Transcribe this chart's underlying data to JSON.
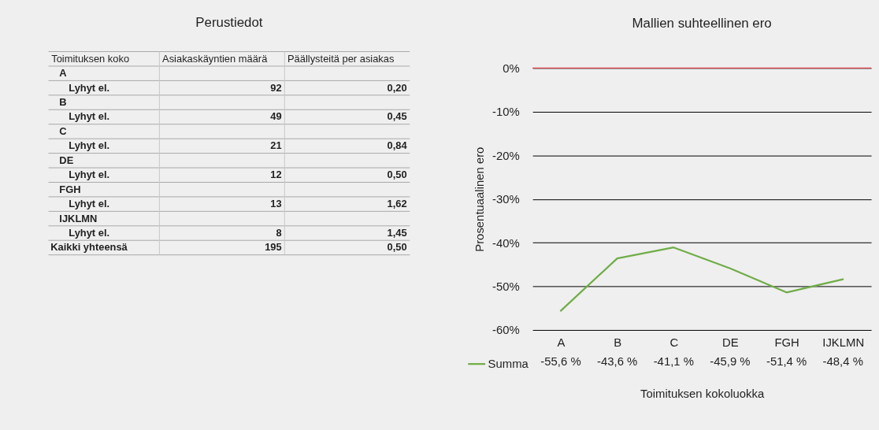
{
  "chart_data": [
    {
      "type": "other",
      "title": "Perustiedot",
      "ylabel": "Toimituksen koko",
      "categories": [
        "A",
        "Lyhyt el.",
        "B",
        "Lyhyt el.",
        "C",
        "Lyhyt el.",
        "DE",
        "Lyhyt el.",
        "FGH",
        "Lyhyt el.",
        "IJKLMN",
        "Lyhyt el.",
        "Kaikki yhteensä"
      ],
      "series": [
        {
          "name": "Asiakaskäyntien määrä",
          "values": [
            null,
            92,
            null,
            49,
            null,
            21,
            null,
            12,
            null,
            13,
            null,
            8,
            195
          ],
          "value_labels": [
            null,
            "92",
            null,
            "49",
            null,
            "21",
            null,
            "12",
            null,
            "13",
            null,
            "8",
            "195"
          ]
        },
        {
          "name": "Päällysteitä per asiakas",
          "values": [
            null,
            0.2,
            null,
            0.45,
            null,
            0.84,
            null,
            0.5,
            null,
            1.62,
            null,
            1.45,
            0.5
          ],
          "value_labels": [
            null,
            "0,20",
            null,
            "0,45",
            null,
            "0,84",
            null,
            "0,50",
            null,
            "1,62",
            null,
            "1,45",
            "0,50"
          ]
        }
      ]
    },
    {
      "type": "line",
      "title": "Mallien suhteellinen ero",
      "xlabel": "Toimituksen kokoluokka",
      "ylabel": "Prosentuaalinen ero",
      "categories": [
        "A",
        "B",
        "C",
        "DE",
        "FGH",
        "IJKLMN"
      ],
      "series": [
        {
          "name": "Summa",
          "color": "#70ad47",
          "values": [
            -55.6,
            -43.6,
            -41.1,
            -45.9,
            -51.4,
            -48.4
          ],
          "value_labels": [
            "-55,6 %",
            "-43,6 %",
            "-41,1 %",
            "-45,9 %",
            "-51,4 %",
            "-48,4 %"
          ]
        }
      ],
      "ylim": [
        -60,
        0
      ],
      "yticks": [
        {
          "value": 0,
          "label": "0%"
        },
        {
          "value": -10,
          "label": "-10%"
        },
        {
          "value": -20,
          "label": "-20%"
        },
        {
          "value": -30,
          "label": "-30%"
        },
        {
          "value": -40,
          "label": "-40%"
        },
        {
          "value": -50,
          "label": "-50%"
        },
        {
          "value": -60,
          "label": "-60%"
        }
      ],
      "grid": "y",
      "legend": "bottom left",
      "marker": "none",
      "line_style": "solid",
      "ref_lines": [
        {
          "axis": "y",
          "value": 0,
          "color": "#e0474c"
        }
      ]
    }
  ]
}
